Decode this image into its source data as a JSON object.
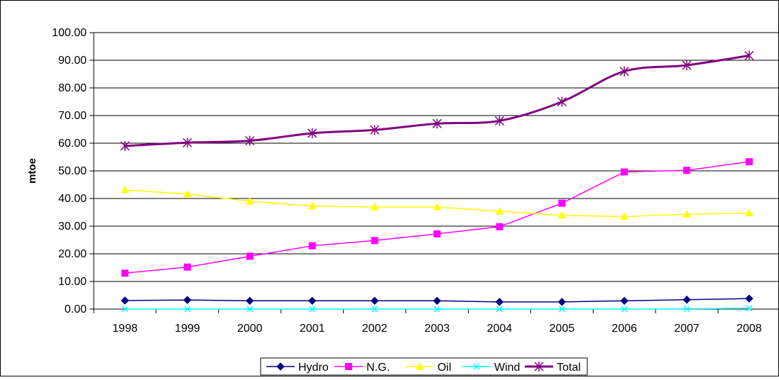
{
  "chart_data": {
    "type": "line",
    "title": "",
    "xlabel": "",
    "ylabel": "mtoe",
    "ylim": [
      0,
      100
    ],
    "yticks": [
      "0.00",
      "10.00",
      "20.00",
      "30.00",
      "40.00",
      "50.00",
      "60.00",
      "70.00",
      "80.00",
      "90.00",
      "100.00"
    ],
    "categories": [
      "1998",
      "1999",
      "2000",
      "2001",
      "2002",
      "2003",
      "2004",
      "2005",
      "2006",
      "2007",
      "2008"
    ],
    "grid": "horizontal",
    "legend_position": "bottom",
    "series": [
      {
        "name": "Hydro",
        "color": "#000080",
        "marker": "diamond",
        "values": [
          3.1,
          3.3,
          3.0,
          3.0,
          3.0,
          3.0,
          2.6,
          2.6,
          3.0,
          3.4,
          3.8
        ]
      },
      {
        "name": "N.G.",
        "color": "#ff00ff",
        "marker": "square",
        "values": [
          13.0,
          15.2,
          19.1,
          22.9,
          24.8,
          27.2,
          29.8,
          38.3,
          49.6,
          50.2,
          53.3
        ]
      },
      {
        "name": "Oil",
        "color": "#ffff00",
        "marker": "triangle",
        "values": [
          43.1,
          41.6,
          39.0,
          37.3,
          36.9,
          36.9,
          35.4,
          33.9,
          33.5,
          34.3,
          34.7
        ]
      },
      {
        "name": "Wind",
        "color": "#00ffff",
        "marker": "x",
        "values": [
          0.0,
          0.0,
          0.0,
          0.0,
          0.0,
          0.0,
          0.0,
          0.0,
          0.0,
          0.1,
          0.3
        ]
      },
      {
        "name": "Total",
        "color": "#800080",
        "marker": "asterisk",
        "values": [
          59.0,
          60.2,
          60.9,
          63.6,
          64.8,
          67.1,
          68.1,
          75.0,
          86.0,
          88.2,
          91.7
        ]
      }
    ]
  }
}
